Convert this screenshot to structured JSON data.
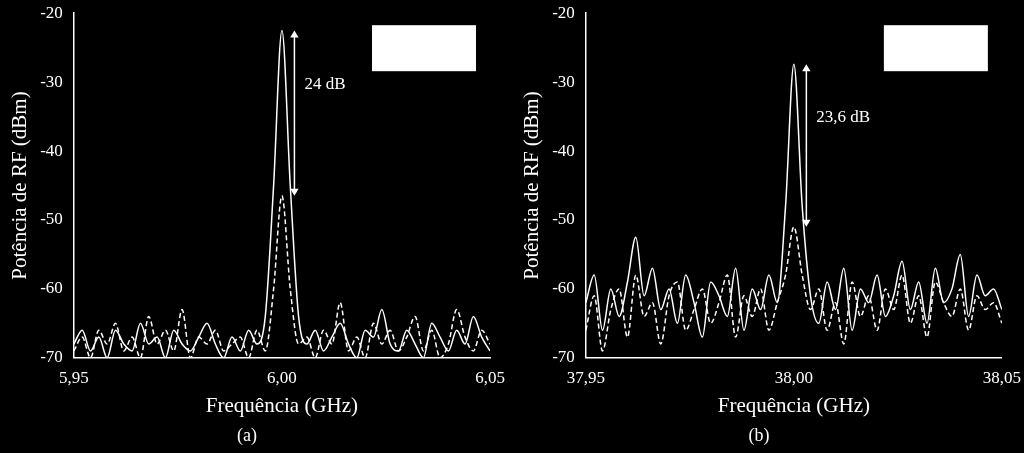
{
  "chart_data": [
    {
      "type": "line",
      "subtitle": "(a)",
      "x_label": "Frequência (GHz)",
      "y_label": "Potência de RF (dBm)",
      "grid": false,
      "xlim": [
        5.95,
        6.05
      ],
      "xticks": [
        {
          "value": 5.95,
          "label": "5,95"
        },
        {
          "value": 6.0,
          "label": "6,00"
        },
        {
          "value": 6.05,
          "label": "6,05"
        }
      ],
      "ylim": [
        -70,
        -20
      ],
      "yticks": [
        -70,
        -60,
        -50,
        -40,
        -30,
        -20
      ],
      "x": [
        5.95,
        5.952,
        5.954,
        5.956,
        5.958,
        5.96,
        5.962,
        5.964,
        5.966,
        5.968,
        5.97,
        5.972,
        5.974,
        5.976,
        5.978,
        5.98,
        5.982,
        5.984,
        5.986,
        5.988,
        5.99,
        5.992,
        5.994,
        5.996,
        5.998,
        6.0,
        6.002,
        6.004,
        6.006,
        6.008,
        6.01,
        6.012,
        6.014,
        6.016,
        6.018,
        6.02,
        6.022,
        6.024,
        6.026,
        6.028,
        6.03,
        6.032,
        6.034,
        6.036,
        6.038,
        6.04,
        6.042,
        6.044,
        6.046,
        6.048,
        6.05
      ],
      "series": [
        {
          "color": "#ffffff",
          "line_style": "solid",
          "values": [
            -68,
            -66,
            -69,
            -67,
            -70,
            -66,
            -68,
            -69,
            -65,
            -68,
            -67,
            -70,
            -66,
            -68,
            -69,
            -67,
            -65,
            -68,
            -70,
            -67,
            -69,
            -66,
            -68,
            -64,
            -45,
            -22.5,
            -45,
            -64,
            -68,
            -66,
            -69,
            -67,
            -65,
            -68,
            -70,
            -66,
            -67,
            -63,
            -68,
            -69,
            -66,
            -68,
            -70,
            -65,
            -67,
            -69,
            -66,
            -68,
            -64,
            -67,
            -69
          ]
        },
        {
          "color": "#ffffff",
          "line_style": "dashed",
          "values": [
            -69,
            -67,
            -70,
            -66,
            -68,
            -65,
            -69,
            -67,
            -70,
            -64,
            -68,
            -66,
            -69,
            -63,
            -70,
            -67,
            -68,
            -66,
            -69,
            -68,
            -67,
            -70,
            -66,
            -69,
            -60,
            -46.5,
            -60,
            -68,
            -67,
            -70,
            -66,
            -68,
            -62,
            -69,
            -67,
            -70,
            -65,
            -68,
            -66,
            -69,
            -67,
            -64,
            -69,
            -66,
            -70,
            -68,
            -63,
            -67,
            -69,
            -66,
            -68
          ]
        }
      ],
      "annotations": [
        {
          "text": "24 dB",
          "x": 6.003,
          "y_from": -22.5,
          "y_to": -46.5
        }
      ]
    },
    {
      "type": "line",
      "subtitle": "(b)",
      "x_label": "Frequência (GHz)",
      "y_label": "Potência de RF (dBm)",
      "grid": false,
      "xlim": [
        37.95,
        38.05
      ],
      "xticks": [
        {
          "value": 37.95,
          "label": "37,95"
        },
        {
          "value": 38.0,
          "label": "38,00"
        },
        {
          "value": 38.05,
          "label": "38,05"
        }
      ],
      "ylim": [
        -70,
        -20
      ],
      "yticks": [
        -70,
        -60,
        -50,
        -40,
        -30,
        -20
      ],
      "x": [
        37.95,
        37.952,
        37.954,
        37.956,
        37.958,
        37.96,
        37.962,
        37.964,
        37.966,
        37.968,
        37.97,
        37.972,
        37.974,
        37.976,
        37.978,
        37.98,
        37.982,
        37.984,
        37.986,
        37.988,
        37.99,
        37.992,
        37.994,
        37.996,
        37.998,
        38.0,
        38.002,
        38.004,
        38.006,
        38.008,
        38.01,
        38.012,
        38.014,
        38.016,
        38.018,
        38.02,
        38.022,
        38.024,
        38.026,
        38.028,
        38.03,
        38.032,
        38.034,
        38.036,
        38.038,
        38.04,
        38.042,
        38.044,
        38.046,
        38.048,
        38.05
      ],
      "series": [
        {
          "color": "#ffffff",
          "line_style": "solid",
          "values": [
            -62,
            -58,
            -66,
            -60,
            -64,
            -59,
            -52.5,
            -61,
            -57,
            -63,
            -60,
            -65,
            -58,
            -62,
            -67,
            -59,
            -61,
            -64,
            -57,
            -66,
            -60,
            -63,
            -58,
            -62,
            -48,
            -27.4,
            -48,
            -61,
            -65,
            -59,
            -63,
            -57,
            -66,
            -60,
            -62,
            -58,
            -64,
            -61,
            -56,
            -63,
            -59,
            -65,
            -57,
            -62,
            -60,
            -55,
            -64,
            -58,
            -61,
            -60,
            -63
          ]
        },
        {
          "color": "#ffffff",
          "line_style": "dashed",
          "values": [
            -66,
            -61,
            -69,
            -63,
            -60,
            -67,
            -58,
            -64,
            -62,
            -68,
            -61,
            -59,
            -66,
            -63,
            -60,
            -65,
            -62,
            -58,
            -67,
            -61,
            -64,
            -60,
            -66,
            -62,
            -58,
            -51,
            -58,
            -63,
            -60,
            -66,
            -62,
            -68,
            -59,
            -64,
            -61,
            -66,
            -60,
            -63,
            -58,
            -65,
            -61,
            -67,
            -59,
            -62,
            -64,
            -60,
            -66,
            -61,
            -63,
            -62,
            -65
          ]
        }
      ],
      "annotations": [
        {
          "text": "23,6 dB",
          "x": 38.003,
          "y_from": -27.4,
          "y_to": -51
        }
      ]
    }
  ]
}
